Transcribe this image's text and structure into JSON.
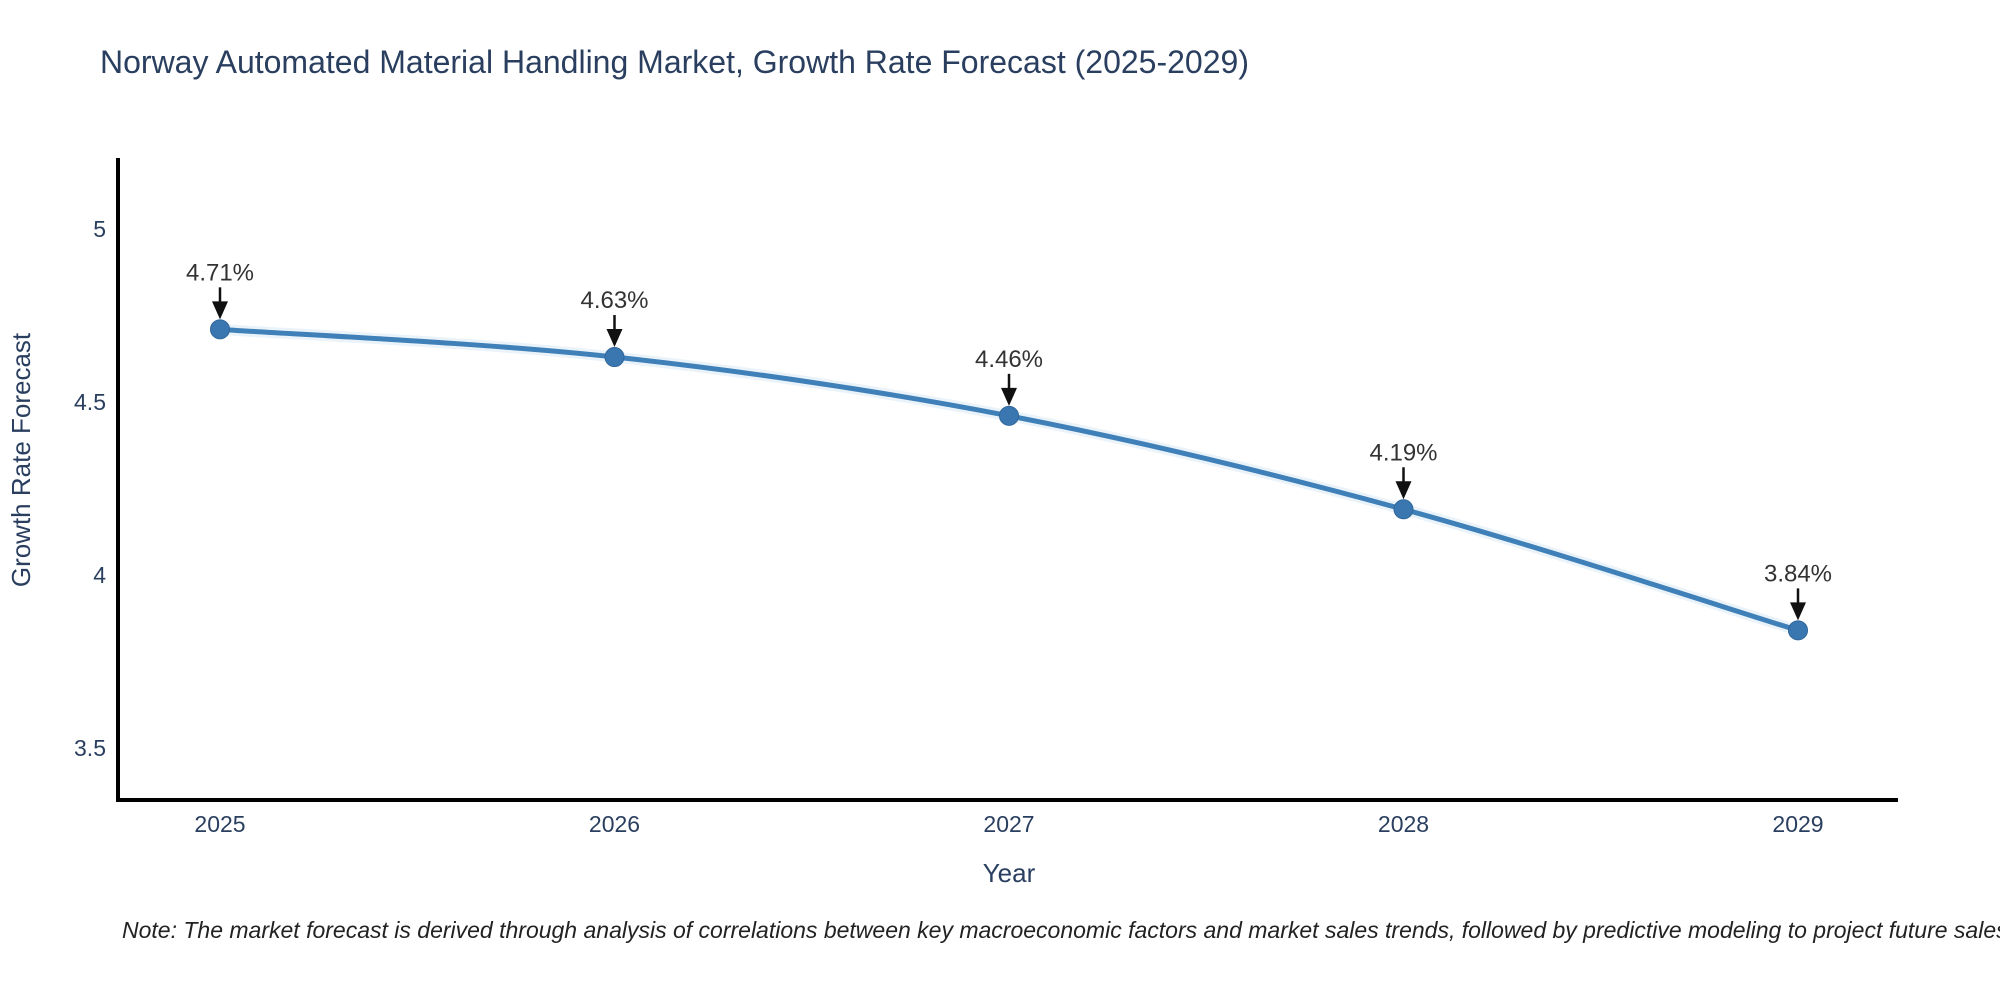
{
  "note": {
    "text": "Note: The market forecast is derived through analysis of correlations between key macroeconomic factors and market sales trends, followed by predictive modeling to project future sales"
  },
  "chart_data": {
    "type": "line",
    "title": "Norway Automated Material Handling Market, Growth Rate Forecast (2025-2029)",
    "xlabel": "Year",
    "ylabel": "Growth Rate Forecast",
    "x": [
      2025,
      2026,
      2027,
      2028,
      2029
    ],
    "y": [
      4.71,
      4.63,
      4.46,
      4.19,
      3.84
    ],
    "point_labels": [
      "4.71%",
      "4.63%",
      "4.46%",
      "4.19%",
      "3.84%"
    ],
    "xtick_labels": [
      "2025",
      "2026",
      "2027",
      "2028",
      "2029"
    ],
    "ytick_values": [
      5,
      4.5,
      4,
      3.5
    ],
    "ytick_labels": [
      "5",
      "4.5",
      "4",
      "3.5"
    ],
    "ylim": [
      3.35,
      5.21
    ],
    "grid": false,
    "legend": "none",
    "line_shape": "spline",
    "colors": {
      "line": "#4080b8",
      "line_halo": "#d8e9f6",
      "marker": "#3a77b1",
      "marker_edge": "#2f6699",
      "annotation_text": "#333333",
      "arrow": "#111111",
      "axis_line": "#000000",
      "tick_text": "#2a3f5f",
      "axis_title_text": "#2a3f5f",
      "title_text": "#2a3f5f"
    }
  }
}
